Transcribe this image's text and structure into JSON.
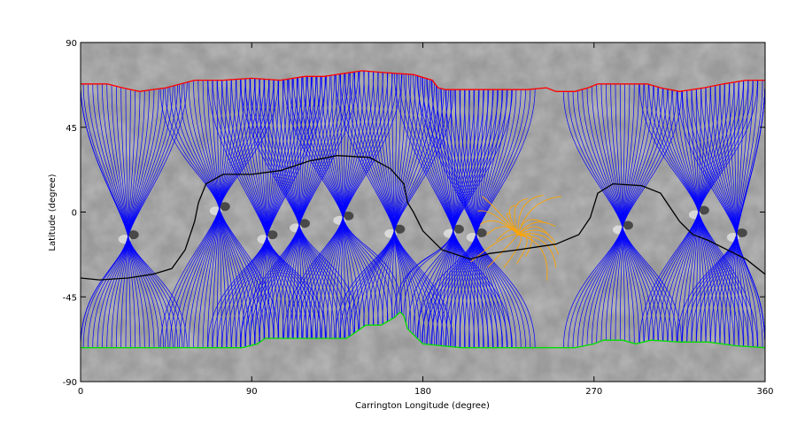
{
  "chart_data": {
    "type": "map",
    "xlabel": "Carrington Longitude (degree)",
    "ylabel": "Latitude (degree)",
    "xlim": [
      0,
      360
    ],
    "ylim": [
      -90,
      90
    ],
    "xticks": [
      0,
      90,
      180,
      270,
      360
    ],
    "yticks": [
      90,
      45,
      0,
      -45,
      -90
    ],
    "colors": {
      "north_polar_hole_boundary": "#ff0000",
      "south_polar_hole_boundary": "#00dd00",
      "neutral_line": "#000000",
      "open_field_lines": "#0000ff",
      "active_region_loops": "#ffa500",
      "background": "#9a9a9a"
    },
    "series": [
      {
        "role": "north_polar_hole_boundary",
        "points": [
          [
            0,
            68
          ],
          [
            14,
            68
          ],
          [
            22,
            66
          ],
          [
            31,
            64
          ],
          [
            45,
            66
          ],
          [
            60,
            70
          ],
          [
            75,
            70
          ],
          [
            90,
            71
          ],
          [
            105,
            70
          ],
          [
            118,
            72
          ],
          [
            128,
            72
          ],
          [
            148,
            75
          ],
          [
            160,
            74
          ],
          [
            175,
            73
          ],
          [
            185,
            70
          ],
          [
            188,
            66
          ],
          [
            192,
            65
          ],
          [
            205,
            65
          ],
          [
            235,
            65
          ],
          [
            245,
            66
          ],
          [
            250,
            64
          ],
          [
            260,
            64
          ],
          [
            267,
            66
          ],
          [
            272,
            68
          ],
          [
            298,
            68
          ],
          [
            305,
            66
          ],
          [
            315,
            64
          ],
          [
            328,
            66
          ],
          [
            338,
            68
          ],
          [
            350,
            70
          ],
          [
            360,
            70
          ]
        ]
      },
      {
        "role": "south_polar_hole_boundary",
        "points": [
          [
            0,
            -72
          ],
          [
            30,
            -72
          ],
          [
            60,
            -72
          ],
          [
            85,
            -72
          ],
          [
            93,
            -70
          ],
          [
            97,
            -67
          ],
          [
            115,
            -67
          ],
          [
            130,
            -67
          ],
          [
            140,
            -67
          ],
          [
            150,
            -60
          ],
          [
            158,
            -60
          ],
          [
            165,
            -56
          ],
          [
            168,
            -53
          ],
          [
            170,
            -55
          ],
          [
            172,
            -62
          ],
          [
            180,
            -70
          ],
          [
            200,
            -72
          ],
          [
            230,
            -72
          ],
          [
            260,
            -72
          ],
          [
            270,
            -70
          ],
          [
            275,
            -68
          ],
          [
            285,
            -68
          ],
          [
            292,
            -70
          ],
          [
            300,
            -68
          ],
          [
            315,
            -69
          ],
          [
            330,
            -69
          ],
          [
            345,
            -71
          ],
          [
            360,
            -72
          ]
        ]
      },
      {
        "role": "neutral_line",
        "points": [
          [
            0,
            -35
          ],
          [
            10,
            -36
          ],
          [
            25,
            -35
          ],
          [
            38,
            -33
          ],
          [
            48,
            -30
          ],
          [
            55,
            -20
          ],
          [
            60,
            -5
          ],
          [
            62,
            5
          ],
          [
            66,
            15
          ],
          [
            75,
            20
          ],
          [
            90,
            20
          ],
          [
            105,
            22
          ],
          [
            120,
            27
          ],
          [
            135,
            30
          ],
          [
            152,
            29
          ],
          [
            163,
            23
          ],
          [
            170,
            15
          ],
          [
            172,
            5
          ],
          [
            175,
            0
          ],
          [
            180,
            -10
          ],
          [
            190,
            -20
          ],
          [
            205,
            -25
          ],
          [
            215,
            -22
          ],
          [
            230,
            -20
          ],
          [
            250,
            -17
          ],
          [
            262,
            -12
          ],
          [
            268,
            -3
          ],
          [
            272,
            10
          ],
          [
            280,
            15
          ],
          [
            295,
            14
          ],
          [
            305,
            10
          ],
          [
            315,
            -5
          ],
          [
            322,
            -12
          ],
          [
            330,
            -15
          ],
          [
            340,
            -20
          ],
          [
            350,
            -25
          ],
          [
            360,
            -33
          ]
        ]
      }
    ],
    "open_field_footpoints": [
      {
        "lon": 25,
        "lat": -13
      },
      {
        "lon": 73,
        "lat": 2
      },
      {
        "lon": 98,
        "lat": -13
      },
      {
        "lon": 115,
        "lat": -7
      },
      {
        "lon": 138,
        "lat": -3
      },
      {
        "lon": 165,
        "lat": -10
      },
      {
        "lon": 196,
        "lat": -10
      },
      {
        "lon": 208,
        "lat": -12
      },
      {
        "lon": 285,
        "lat": -8
      },
      {
        "lon": 325,
        "lat": 0
      },
      {
        "lon": 345,
        "lat": -12
      }
    ],
    "active_region_loop_center": {
      "lon": 232,
      "lat": -12
    }
  }
}
